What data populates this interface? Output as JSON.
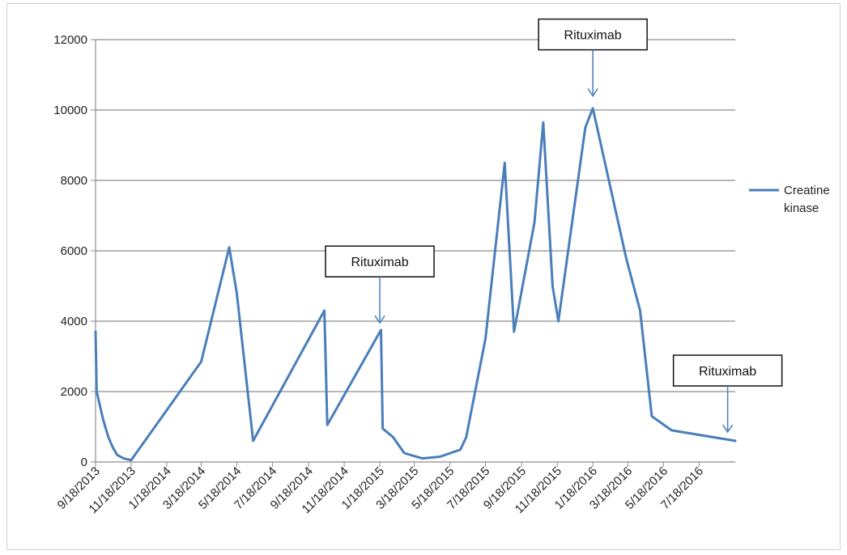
{
  "chart_data": {
    "type": "line",
    "title": "",
    "xlabel": "",
    "ylabel": "",
    "ylim": [
      0,
      12000
    ],
    "yticks": [
      0,
      2000,
      4000,
      6000,
      8000,
      10000,
      12000
    ],
    "xlim": [
      "2013-09-18",
      "2016-09-18"
    ],
    "xtick_labels": [
      "9/18/2013",
      "11/18/2013",
      "1/18/2014",
      "3/18/2014",
      "5/18/2014",
      "7/18/2014",
      "9/18/2014",
      "11/18/2014",
      "1/18/2015",
      "3/18/2015",
      "5/18/2015",
      "7/18/2015",
      "9/18/2015",
      "11/18/2015",
      "1/18/2016",
      "3/18/2016",
      "5/18/2016",
      "7/18/2016"
    ],
    "grid": "horizontal",
    "legend_position": "right",
    "series": [
      {
        "name": "Creatine kinase",
        "color": "#4a7ebb",
        "points": [
          [
            "2013-09-18",
            3700
          ],
          [
            "2013-09-20",
            2000
          ],
          [
            "2013-10-01",
            1200
          ],
          [
            "2013-10-10",
            700
          ],
          [
            "2013-10-18",
            400
          ],
          [
            "2013-10-25",
            200
          ],
          [
            "2013-11-05",
            100
          ],
          [
            "2013-11-18",
            50
          ],
          [
            "2014-03-18",
            2850
          ],
          [
            "2014-05-05",
            6100
          ],
          [
            "2014-05-18",
            4800
          ],
          [
            "2014-06-15",
            600
          ],
          [
            "2014-10-15",
            4300
          ],
          [
            "2014-10-20",
            1050
          ],
          [
            "2015-01-20",
            3750
          ],
          [
            "2015-01-23",
            950
          ],
          [
            "2015-02-10",
            700
          ],
          [
            "2015-03-01",
            250
          ],
          [
            "2015-04-01",
            100
          ],
          [
            "2015-05-01",
            150
          ],
          [
            "2015-06-05",
            350
          ],
          [
            "2015-06-15",
            700
          ],
          [
            "2015-07-18",
            3500
          ],
          [
            "2015-08-20",
            8500
          ],
          [
            "2015-09-05",
            3700
          ],
          [
            "2015-10-10",
            6800
          ],
          [
            "2015-10-25",
            9650
          ],
          [
            "2015-11-10",
            5000
          ],
          [
            "2015-11-20",
            4000
          ],
          [
            "2016-01-05",
            9500
          ],
          [
            "2016-01-18",
            10050
          ],
          [
            "2016-03-15",
            5800
          ],
          [
            "2016-04-08",
            4300
          ],
          [
            "2016-04-28",
            1300
          ],
          [
            "2016-06-01",
            900
          ],
          [
            "2016-09-18",
            600
          ]
        ]
      }
    ],
    "annotations": [
      {
        "text": "Rituximab",
        "date": "2015-01-18",
        "value": 3950
      },
      {
        "text": "Rituximab",
        "date": "2016-01-18",
        "value": 10400
      },
      {
        "text": "Rituximab",
        "date": "2016-09-05",
        "value": 850
      }
    ]
  }
}
